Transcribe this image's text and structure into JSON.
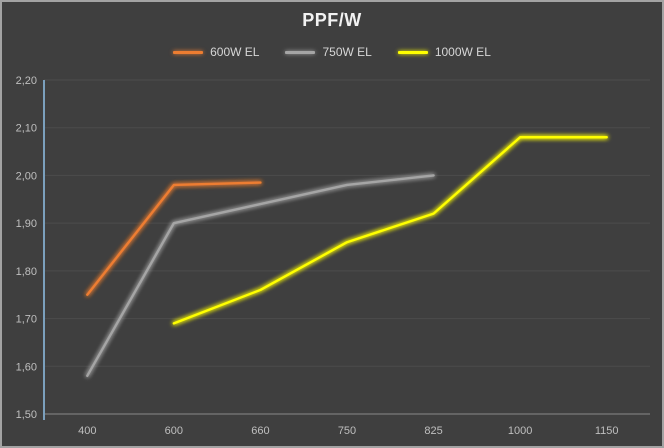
{
  "title": "PPF/W",
  "legend": {
    "items": [
      {
        "label": "600W EL",
        "color": "#ED7D31"
      },
      {
        "label": "750W EL",
        "color": "#A5A5A5"
      },
      {
        "label": "1000W EL",
        "color": "#FFFF00"
      }
    ]
  },
  "chart_data": {
    "type": "line",
    "title": "PPF/W",
    "xlabel": "",
    "ylabel": "",
    "categories": [
      "400",
      "600",
      "660",
      "750",
      "825",
      "1000",
      "1150"
    ],
    "series": [
      {
        "name": "600W EL",
        "color": "#ED7D31",
        "values": [
          1.75,
          1.98,
          1.985,
          null,
          null,
          null,
          null
        ]
      },
      {
        "name": "750W EL",
        "color": "#A5A5A5",
        "values": [
          1.58,
          1.9,
          1.94,
          1.98,
          2.0,
          null,
          null
        ]
      },
      {
        "name": "1000W EL",
        "color": "#FFFF00",
        "values": [
          null,
          1.69,
          1.76,
          1.86,
          1.92,
          2.08,
          2.08
        ]
      }
    ],
    "ylim": [
      1.5,
      2.2
    ],
    "yticks": [
      {
        "value": 2.2,
        "label": "2,20"
      },
      {
        "value": 2.1,
        "label": "2,10"
      },
      {
        "value": 2.0,
        "label": "2,00"
      },
      {
        "value": 1.9,
        "label": "1,90"
      },
      {
        "value": 1.8,
        "label": "1,80"
      },
      {
        "value": 1.7,
        "label": "1,70"
      },
      {
        "value": 1.6,
        "label": "1,60"
      },
      {
        "value": 1.5,
        "label": "1,50"
      }
    ],
    "grid": true,
    "legend_position": "top"
  },
  "colors": {
    "background": "#3f3f3f",
    "frame_border": "#a3a3a3",
    "gridline": "#4c4c4c",
    "baseline": "#8a8a8a",
    "y_axis_line": "#7ba0bd",
    "tick_text": "#bfbfbf",
    "legend_text": "#d6d6d6",
    "title_text": "#f2f2f2"
  }
}
